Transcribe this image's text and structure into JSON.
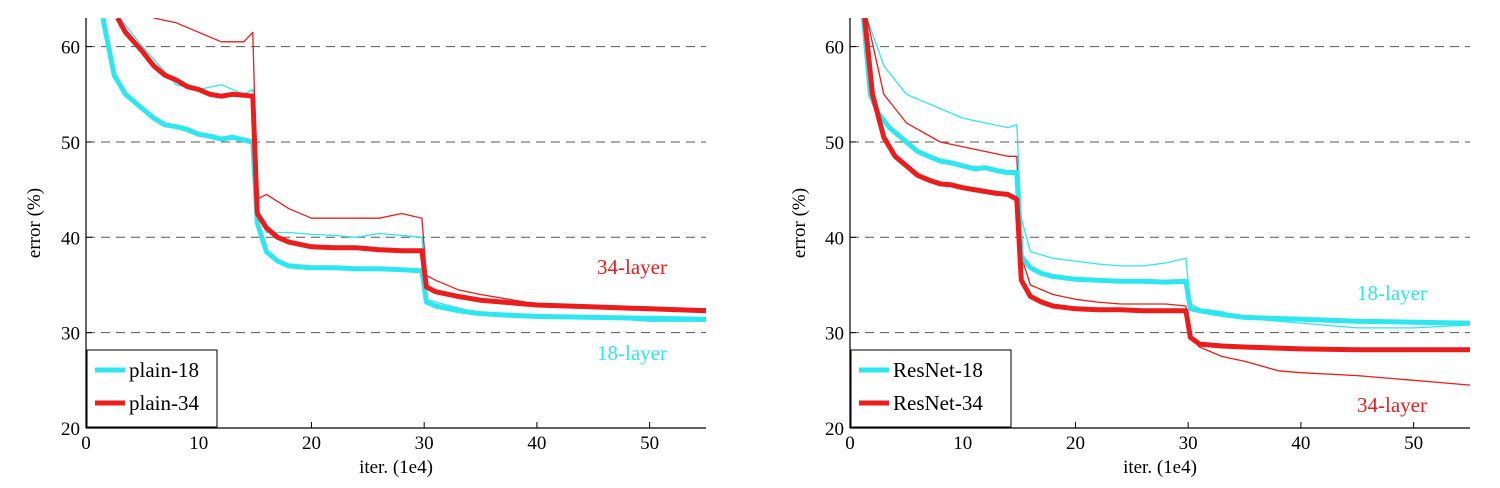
{
  "chart_data": [
    {
      "type": "line",
      "xlabel": "iter. (1e4)",
      "ylabel": "error (%)",
      "xlim": [
        0,
        55
      ],
      "ylim": [
        20,
        63
      ],
      "xticks": [
        "0",
        "10",
        "20",
        "30",
        "40",
        "50"
      ],
      "yticks": [
        "20",
        "30",
        "40",
        "50",
        "60"
      ],
      "grid": "dashed horizontal at 30, 40, 50, 60",
      "legend_placement": "bottom-left",
      "colors": {
        "cyan": "#2ee6f0",
        "red": "#ea1c1c"
      },
      "series": [
        {
          "name": "plain-18",
          "color": "#2ee6f0",
          "style": "thick",
          "x": [
            1.5,
            2.5,
            3.5,
            5,
            6,
            7,
            8,
            9,
            10,
            11,
            12,
            13,
            14,
            14.8,
            15.2,
            16,
            17,
            18,
            20,
            22,
            24,
            26,
            28,
            29.8,
            30.2,
            31,
            33,
            35,
            38,
            40,
            45,
            50,
            55
          ],
          "y": [
            63,
            57,
            55,
            53.5,
            52.5,
            51.8,
            51.6,
            51.3,
            50.8,
            50.6,
            50.3,
            50.5,
            50.2,
            50,
            41.5,
            38.5,
            37.5,
            37,
            36.8,
            36.8,
            36.7,
            36.7,
            36.6,
            36.5,
            33.2,
            32.8,
            32.3,
            32,
            31.8,
            31.7,
            31.6,
            31.5,
            31.4
          ]
        },
        {
          "name": "plain-34",
          "color": "#ea1c1c",
          "style": "thick",
          "x": [
            2.8,
            3.5,
            5,
            6,
            7,
            8,
            9,
            10,
            11,
            12,
            13,
            14,
            14.8,
            15.2,
            16,
            17,
            18,
            20,
            22,
            24,
            26,
            28,
            29.8,
            30.2,
            31,
            33,
            35,
            38,
            40,
            45,
            50,
            55
          ],
          "y": [
            63,
            61.5,
            59.5,
            58,
            57,
            56.5,
            55.8,
            55.5,
            55,
            54.8,
            55,
            54.9,
            54.8,
            42.5,
            41,
            40,
            39.5,
            39,
            38.9,
            38.9,
            38.7,
            38.6,
            38.6,
            34.8,
            34.3,
            33.8,
            33.4,
            33.1,
            32.9,
            32.7,
            32.5,
            32.3
          ]
        },
        {
          "name": "",
          "color": "#2ee6f0",
          "style": "thin",
          "x": [
            3,
            5,
            8,
            10,
            12,
            14,
            14.8,
            15.2,
            16,
            18,
            20,
            22,
            24,
            26,
            28,
            29.8,
            30.2,
            31,
            33,
            35,
            40,
            45,
            50,
            55
          ],
          "y": [
            63,
            60,
            56,
            55.5,
            56,
            55,
            55.5,
            42.5,
            40.5,
            40.5,
            40.3,
            40.2,
            40,
            40.4,
            40.2,
            40,
            33.5,
            33.2,
            32.6,
            32,
            31.8,
            31.6,
            31.2,
            31.2
          ]
        },
        {
          "name": "",
          "color": "#ea1c1c",
          "style": "thin",
          "x": [
            6,
            8,
            10,
            12,
            14,
            14.8,
            15.2,
            16,
            18,
            20,
            22,
            24,
            26,
            28,
            29.8,
            30.2,
            31,
            33,
            35,
            40,
            45,
            50,
            55
          ],
          "y": [
            63,
            62.5,
            61.5,
            60.5,
            60.5,
            61.5,
            44,
            44.5,
            43,
            42,
            42,
            42,
            42,
            42.5,
            42,
            36,
            35.5,
            34.5,
            34,
            33,
            32.8,
            32.6,
            32.5
          ]
        }
      ],
      "annotations": [
        {
          "text": "34-layer",
          "color": "#ea1c1c",
          "x": 48,
          "y": 36.3
        },
        {
          "text": "18-layer",
          "color": "#2ee6f0",
          "x": 48,
          "y": 27.8
        }
      ]
    },
    {
      "type": "line",
      "xlabel": "iter. (1e4)",
      "ylabel": "error (%)",
      "xlim": [
        0,
        55
      ],
      "ylim": [
        20,
        63
      ],
      "xticks": [
        "0",
        "10",
        "20",
        "30",
        "40",
        "50"
      ],
      "yticks": [
        "20",
        "30",
        "40",
        "50",
        "60"
      ],
      "grid": "dashed horizontal at 30, 40, 50, 60",
      "legend_placement": "bottom-left",
      "colors": {
        "cyan": "#2ee6f0",
        "red": "#ea1c1c"
      },
      "series": [
        {
          "name": "ResNet-18",
          "color": "#2ee6f0",
          "style": "thick",
          "x": [
            1.2,
            1.8,
            2.5,
            3.5,
            5,
            6,
            7,
            8,
            9,
            10,
            11,
            12,
            13,
            14,
            14.8,
            15.2,
            16,
            17,
            18,
            20,
            22,
            24,
            26,
            28,
            29.8,
            30.2,
            31,
            33,
            35,
            40,
            45,
            50,
            55
          ],
          "y": [
            63,
            55,
            53,
            51.5,
            50,
            49,
            48.5,
            48,
            47.8,
            47.5,
            47.2,
            47.3,
            47,
            46.8,
            46.8,
            38,
            36.8,
            36.2,
            35.9,
            35.6,
            35.5,
            35.4,
            35.4,
            35.3,
            35.4,
            32.5,
            32.3,
            31.9,
            31.6,
            31.4,
            31.2,
            31.1,
            31
          ]
        },
        {
          "name": "ResNet-34",
          "color": "#ea1c1c",
          "style": "thick",
          "x": [
            1.3,
            2,
            3,
            4,
            5,
            6,
            7,
            8,
            9,
            10,
            11,
            12,
            13,
            14,
            14.8,
            15.2,
            16,
            17,
            18,
            20,
            22,
            24,
            26,
            28,
            29.8,
            30.2,
            31,
            33,
            35,
            40,
            45,
            50,
            55
          ],
          "y": [
            63,
            55,
            50.5,
            48.5,
            47.5,
            46.5,
            46,
            45.6,
            45.5,
            45.2,
            45,
            44.8,
            44.6,
            44.5,
            44,
            35.5,
            33.8,
            33.2,
            32.8,
            32.5,
            32.4,
            32.4,
            32.3,
            32.3,
            32.3,
            29.5,
            28.8,
            28.6,
            28.5,
            28.3,
            28.2,
            28.2,
            28.2
          ]
        },
        {
          "name": "",
          "color": "#2ee6f0",
          "style": "thin",
          "x": [
            1.5,
            3,
            5,
            8,
            10,
            12,
            14,
            14.8,
            15.2,
            16,
            18,
            20,
            22,
            24,
            26,
            28,
            29.8,
            30.2,
            31,
            33,
            35,
            40,
            45,
            50,
            55
          ],
          "y": [
            63,
            58,
            55,
            53.5,
            52.5,
            52,
            51.5,
            51.8,
            42,
            38.5,
            37.8,
            37.5,
            37.2,
            37,
            37,
            37.3,
            37.8,
            33,
            32.5,
            32.2,
            31.5,
            31,
            30.5,
            30.5,
            30.8
          ]
        },
        {
          "name": "",
          "color": "#ea1c1c",
          "style": "thin",
          "x": [
            1.5,
            3,
            5,
            8,
            10,
            12,
            14,
            14.8,
            15.2,
            16,
            18,
            20,
            22,
            24,
            26,
            28,
            29.8,
            30.2,
            31,
            33,
            35,
            38,
            40,
            45,
            50,
            55
          ],
          "y": [
            63,
            55,
            52,
            50,
            49.5,
            49,
            48.5,
            48.5,
            38,
            35,
            34,
            33.5,
            33.2,
            33,
            33,
            33,
            32.8,
            29.5,
            28.5,
            27.5,
            27,
            26,
            25.8,
            25.5,
            25,
            24.5
          ]
        }
      ],
      "annotations": [
        {
          "text": "18-layer",
          "color": "#2ee6f0",
          "x": 48,
          "y": 33.5
        },
        {
          "text": "34-layer",
          "color": "#ea1c1c",
          "x": 48,
          "y": 22.0
        }
      ]
    }
  ]
}
